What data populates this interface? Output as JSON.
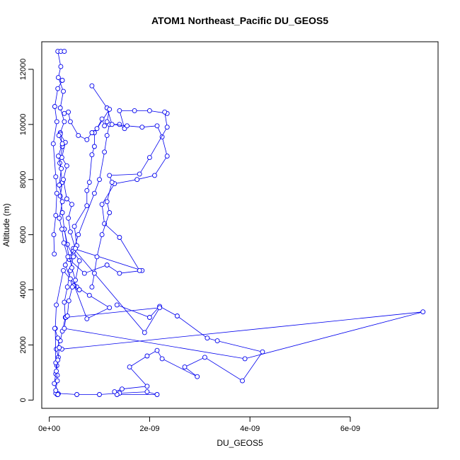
{
  "chart_data": {
    "type": "line",
    "title": "ATOM1 Northeast_Pacific DU_GEOS5",
    "xlabel": "DU_GEOS5",
    "ylabel": "Altitude (m)",
    "xlim": [
      -1.5e-10,
      7.75e-09
    ],
    "ylim": [
      -300,
      13000
    ],
    "x_ticks": [
      {
        "value": 0,
        "label": "0e+00"
      },
      {
        "value": 2e-09,
        "label": "2e-09"
      },
      {
        "value": 4e-09,
        "label": "4e-09"
      },
      {
        "value": 6e-09,
        "label": "6e-09"
      }
    ],
    "y_ticks": [
      {
        "value": 0,
        "label": "0"
      },
      {
        "value": 2000,
        "label": "2000"
      },
      {
        "value": 4000,
        "label": "4000"
      },
      {
        "value": 6000,
        "label": "6000"
      },
      {
        "value": 8000,
        "label": "8000"
      },
      {
        "value": 10000,
        "label": "10000"
      },
      {
        "value": 12000,
        "label": "12000"
      }
    ],
    "grid": false,
    "legend": "none",
    "line_color": "#0000ee",
    "marker": "open-circle",
    "series": [
      {
        "values": [
          [
            1.6e-10,
            200
          ],
          [
            1.8e-10,
            230
          ],
          [
            1e-10,
            600
          ],
          [
            1.3e-10,
            950
          ],
          [
            1.5e-10,
            1250
          ],
          [
            1.8e-10,
            1550
          ],
          [
            1.4e-10,
            1850
          ],
          [
            2.2e-10,
            2150
          ],
          [
            2.6e-10,
            2500
          ],
          [
            3.2e-10,
            3000
          ],
          [
            3e-10,
            3550
          ],
          [
            3.6e-10,
            4100
          ],
          [
            4.2e-10,
            4700
          ],
          [
            4.8e-10,
            5200
          ],
          [
            3.6e-10,
            5650
          ],
          [
            3e-10,
            6200
          ],
          [
            2.6e-10,
            6800
          ],
          [
            2.2e-10,
            7400
          ],
          [
            2.6e-10,
            7900
          ],
          [
            2.1e-10,
            8600
          ],
          [
            2.6e-10,
            9200
          ],
          [
            2.2e-10,
            9700
          ],
          [
            3e-10,
            10100
          ],
          [
            2.2e-10,
            10600
          ],
          [
            2.8e-10,
            11200
          ],
          [
            1.8e-10,
            11700
          ],
          [
            2.3e-10,
            12100
          ],
          [
            1.7e-10,
            12650
          ],
          [
            2.3e-10,
            12650
          ],
          [
            3e-10,
            12650
          ]
        ]
      },
      {
        "values": [
          [
            1.3e-10,
            250
          ],
          [
            5.5e-10,
            200
          ],
          [
            1e-09,
            200
          ],
          [
            1.4e-09,
            250
          ],
          [
            1.95e-09,
            300
          ],
          [
            2.15e-09,
            200
          ],
          [
            1.35e-09,
            200
          ],
          [
            1.3e-09,
            300
          ],
          [
            1.45e-09,
            400
          ],
          [
            1.95e-09,
            500
          ],
          [
            1.6e-09,
            1200
          ],
          [
            1.95e-09,
            1600
          ],
          [
            2.15e-09,
            1800
          ],
          [
            2.25e-09,
            1500
          ],
          [
            2.95e-09,
            850
          ],
          [
            2.7e-09,
            1200
          ],
          [
            3.1e-09,
            1550
          ],
          [
            3.85e-09,
            700
          ],
          [
            4.25e-09,
            1750
          ],
          [
            3.35e-09,
            2150
          ],
          [
            3.15e-09,
            2250
          ],
          [
            2.55e-09,
            3050
          ],
          [
            2.2e-09,
            3400
          ],
          [
            2e-09,
            3000
          ],
          [
            1.35e-09,
            3450
          ]
        ]
      },
      {
        "values": [
          [
            2.5e-10,
            1850
          ],
          [
            7.45e-09,
            3200
          ],
          [
            3.9e-09,
            1500
          ],
          [
            3e-10,
            2600
          ],
          [
            3.3e-10,
            3000
          ],
          [
            2.2e-09,
            3350
          ],
          [
            1.9e-09,
            2450
          ],
          [
            4.8e-10,
            5500
          ],
          [
            1.85e-09,
            4700
          ],
          [
            1.4e-09,
            4600
          ],
          [
            1.15e-09,
            4900
          ],
          [
            7e-10,
            4600
          ],
          [
            4e-10,
            5100
          ],
          [
            3e-10,
            6200
          ]
        ]
      },
      {
        "values": [
          [
            1.6e-10,
            900
          ],
          [
            1.3e-10,
            1350
          ],
          [
            1.2e-10,
            2600
          ],
          [
            1.4e-10,
            3450
          ],
          [
            2.8e-10,
            4700
          ],
          [
            5.5e-10,
            4100
          ],
          [
            8e-10,
            3800
          ],
          [
            1.2e-09,
            3350
          ],
          [
            7.5e-10,
            2950
          ],
          [
            5e-10,
            4150
          ],
          [
            6e-10,
            5050
          ],
          [
            4.8e-10,
            5400
          ],
          [
            5.8e-10,
            6000
          ],
          [
            9e-10,
            7500
          ],
          [
            1e-09,
            8000
          ],
          [
            1.1e-09,
            9000
          ],
          [
            1.15e-09,
            9600
          ],
          [
            1.2e-09,
            10000
          ],
          [
            1.4e-09,
            10000
          ],
          [
            1.5e-09,
            9850
          ],
          [
            1.4e-09,
            10500
          ],
          [
            1.7e-09,
            10500
          ],
          [
            2e-09,
            10500
          ],
          [
            2.35e-09,
            10400
          ]
        ]
      },
      {
        "values": [
          [
            1e-10,
            5300
          ],
          [
            9e-11,
            6000
          ],
          [
            1.3e-10,
            6700
          ],
          [
            1.5e-10,
            7500
          ],
          [
            1.3e-10,
            8100
          ],
          [
            8e-11,
            9300
          ],
          [
            1.5e-10,
            10100
          ],
          [
            1.1e-10,
            10650
          ],
          [
            1.7e-10,
            11300
          ],
          [
            2.6e-10,
            11600
          ]
        ]
      },
      {
        "values": [
          [
            8.5e-10,
            11400
          ],
          [
            1.15e-09,
            10600
          ],
          [
            1.25e-09,
            10000
          ],
          [
            1.55e-09,
            9950
          ],
          [
            1.85e-09,
            9900
          ],
          [
            2.15e-09,
            9950
          ],
          [
            2.25e-09,
            9550
          ],
          [
            2.35e-09,
            8850
          ],
          [
            2.1e-09,
            8150
          ],
          [
            1.75e-09,
            8000
          ],
          [
            1.3e-09,
            7850
          ],
          [
            1.05e-09,
            7100
          ],
          [
            1.1e-09,
            6400
          ],
          [
            1.4e-09,
            5900
          ],
          [
            1.8e-09,
            4700
          ]
        ]
      },
      {
        "values": [
          [
            1.15e-09,
            10100
          ],
          [
            1.2e-09,
            10550
          ],
          [
            9e-10,
            9700
          ],
          [
            9e-10,
            9200
          ],
          [
            8.5e-10,
            8900
          ],
          [
            8e-10,
            7900
          ],
          [
            7.5e-10,
            7600
          ],
          [
            7.5e-10,
            7050
          ],
          [
            5e-10,
            6300
          ],
          [
            5.5e-10,
            5600
          ]
        ]
      },
      {
        "values": [
          [
            2.3e-09,
            10450
          ],
          [
            2.35e-09,
            9900
          ],
          [
            2e-09,
            8800
          ],
          [
            1.8e-09,
            8200
          ],
          [
            1.2e-09,
            8150
          ],
          [
            1.25e-09,
            7900
          ],
          [
            1.15e-09,
            7200
          ],
          [
            1.2e-09,
            6800
          ],
          [
            1.05e-09,
            6000
          ],
          [
            9.5e-10,
            5200
          ],
          [
            9e-10,
            4600
          ],
          [
            8.5e-10,
            4100
          ]
        ]
      },
      {
        "values": [
          [
            2.2e-10,
            9650
          ],
          [
            3.2e-10,
            9350
          ],
          [
            2.5e-10,
            8800
          ],
          [
            3.5e-10,
            8500
          ],
          [
            2.8e-10,
            8000
          ],
          [
            3.5e-10,
            7300
          ],
          [
            4.5e-10,
            7100
          ],
          [
            3.8e-10,
            6600
          ],
          [
            4.2e-10,
            6100
          ],
          [
            5.2e-10,
            5500
          ],
          [
            4e-10,
            5200
          ],
          [
            4.5e-10,
            4800
          ],
          [
            5.2e-10,
            4350
          ],
          [
            4.8e-10,
            4150
          ],
          [
            6e-10,
            4000
          ]
        ]
      },
      {
        "values": [
          [
            1.9e-10,
            9600
          ],
          [
            2.6e-10,
            9300
          ],
          [
            1.8e-10,
            8850
          ],
          [
            2.4e-10,
            8400
          ],
          [
            2e-10,
            7800
          ],
          [
            2.6e-10,
            7200
          ],
          [
            2e-10,
            6600
          ],
          [
            2.5e-10,
            6200
          ],
          [
            2.9e-10,
            5700
          ],
          [
            3.7e-10,
            5200
          ],
          [
            3.2e-10,
            4900
          ],
          [
            4.2e-10,
            4400
          ],
          [
            4.6e-10,
            4100
          ],
          [
            3.9e-10,
            3600
          ],
          [
            3.6e-10,
            3050
          ]
        ]
      },
      {
        "values": [
          [
            1.1e-10,
            2600
          ],
          [
            1.7e-10,
            2250
          ],
          [
            2e-10,
            1900
          ],
          [
            1.7e-10,
            1450
          ],
          [
            1.4e-10,
            1050
          ],
          [
            1.6e-10,
            700
          ],
          [
            1.3e-10,
            350
          ],
          [
            1.7e-10,
            200
          ]
        ]
      },
      {
        "values": [
          [
            3e-10,
            10400
          ],
          [
            3.8e-10,
            10450
          ],
          [
            4.2e-10,
            10100
          ],
          [
            5.8e-10,
            9600
          ],
          [
            7.5e-10,
            9450
          ],
          [
            8.5e-10,
            9700
          ],
          [
            9.5e-10,
            9850
          ],
          [
            1.05e-09,
            10200
          ],
          [
            1.1e-09,
            9950
          ]
        ]
      }
    ]
  }
}
